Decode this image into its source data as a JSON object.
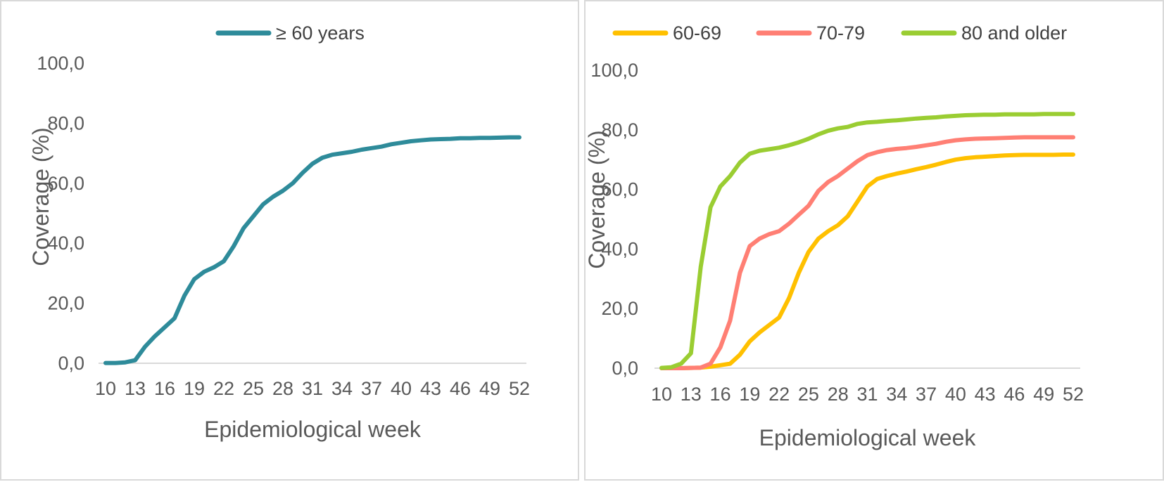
{
  "chart_data": [
    {
      "type": "line",
      "title": "",
      "xlabel": "Epidemiological week",
      "ylabel": "Coverage (%)",
      "ylim": [
        0,
        100
      ],
      "y_ticks": [
        "0,0",
        "20,0",
        "40,0",
        "60,0",
        "80,0",
        "100,0"
      ],
      "x_ticks": [
        "10",
        "13",
        "16",
        "19",
        "22",
        "25",
        "28",
        "31",
        "34",
        "37",
        "40",
        "43",
        "46",
        "49",
        "52"
      ],
      "xlim": [
        10,
        52
      ],
      "grid": false,
      "legend_position": "top",
      "series": [
        {
          "name": "≥ 60 years",
          "color": "#2E8B9A",
          "x": [
            10,
            11,
            12,
            13,
            14,
            15,
            16,
            17,
            18,
            19,
            20,
            21,
            22,
            23,
            24,
            25,
            26,
            27,
            28,
            29,
            30,
            31,
            32,
            33,
            34,
            35,
            36,
            37,
            38,
            39,
            40,
            41,
            42,
            43,
            44,
            45,
            46,
            47,
            48,
            49,
            50,
            51,
            52
          ],
          "values": [
            0.1,
            0.1,
            0.3,
            1.0,
            5.5,
            9.0,
            12.0,
            15.0,
            22.5,
            28.0,
            30.5,
            32.0,
            34.0,
            39.0,
            45.0,
            49.0,
            53.0,
            55.5,
            57.5,
            60.0,
            63.5,
            66.5,
            68.5,
            69.5,
            70.0,
            70.5,
            71.2,
            71.7,
            72.2,
            73.0,
            73.5,
            74.0,
            74.3,
            74.6,
            74.7,
            74.8,
            75.0,
            75.0,
            75.1,
            75.1,
            75.2,
            75.3,
            75.3
          ]
        }
      ]
    },
    {
      "type": "line",
      "title": "",
      "xlabel": "Epidemiological week",
      "ylabel": "Coverage (%)",
      "ylim": [
        0,
        100
      ],
      "y_ticks": [
        "0,0",
        "20,0",
        "40,0",
        "60,0",
        "80,0",
        "100,0"
      ],
      "x_ticks": [
        "10",
        "13",
        "16",
        "19",
        "22",
        "25",
        "28",
        "31",
        "34",
        "37",
        "40",
        "43",
        "46",
        "49",
        "52"
      ],
      "xlim": [
        10,
        52
      ],
      "grid": false,
      "legend_position": "top",
      "series": [
        {
          "name": "60-69",
          "color": "#FFC000",
          "x": [
            10,
            11,
            12,
            13,
            14,
            15,
            16,
            17,
            18,
            19,
            20,
            21,
            22,
            23,
            24,
            25,
            26,
            27,
            28,
            29,
            30,
            31,
            32,
            33,
            34,
            35,
            36,
            37,
            38,
            39,
            40,
            41,
            42,
            43,
            44,
            45,
            46,
            47,
            48,
            49,
            50,
            51,
            52
          ],
          "values": [
            0.0,
            0.0,
            0.0,
            0.1,
            0.2,
            0.5,
            1.0,
            1.5,
            4.5,
            9.0,
            12.0,
            14.5,
            17.0,
            23.5,
            32.0,
            39.0,
            43.5,
            46.0,
            48.0,
            51.0,
            56.0,
            61.0,
            63.5,
            64.5,
            65.3,
            66.0,
            66.8,
            67.5,
            68.3,
            69.2,
            70.0,
            70.5,
            70.8,
            71.0,
            71.2,
            71.4,
            71.5,
            71.6,
            71.6,
            71.6,
            71.6,
            71.7,
            71.7
          ]
        },
        {
          "name": "70-79",
          "color": "#FF7F74",
          "x": [
            10,
            11,
            12,
            13,
            14,
            15,
            16,
            17,
            18,
            19,
            20,
            21,
            22,
            23,
            24,
            25,
            26,
            27,
            28,
            29,
            30,
            31,
            32,
            33,
            34,
            35,
            36,
            37,
            38,
            39,
            40,
            41,
            42,
            43,
            44,
            45,
            46,
            47,
            48,
            49,
            50,
            51,
            52
          ],
          "values": [
            0.0,
            0.0,
            0.0,
            0.1,
            0.2,
            1.5,
            7.0,
            16.0,
            32.0,
            41.0,
            43.5,
            45.0,
            46.0,
            48.5,
            51.5,
            54.5,
            59.5,
            62.5,
            64.5,
            67.0,
            69.5,
            71.5,
            72.5,
            73.2,
            73.6,
            73.9,
            74.3,
            74.8,
            75.3,
            76.0,
            76.5,
            76.8,
            77.0,
            77.1,
            77.2,
            77.3,
            77.4,
            77.5,
            77.5,
            77.5,
            77.5,
            77.5,
            77.5
          ]
        },
        {
          "name": "80 and older",
          "color": "#9ACD32",
          "x": [
            10,
            11,
            12,
            13,
            14,
            15,
            16,
            17,
            18,
            19,
            20,
            21,
            22,
            23,
            24,
            25,
            26,
            27,
            28,
            29,
            30,
            31,
            32,
            33,
            34,
            35,
            36,
            37,
            38,
            39,
            40,
            41,
            42,
            43,
            44,
            45,
            46,
            47,
            48,
            49,
            50,
            51,
            52
          ],
          "values": [
            0.1,
            0.3,
            1.5,
            5.0,
            34.0,
            54.0,
            61.0,
            64.5,
            69.0,
            72.0,
            73.0,
            73.5,
            74.0,
            74.8,
            75.8,
            77.0,
            78.5,
            79.7,
            80.5,
            81.0,
            82.0,
            82.5,
            82.7,
            83.0,
            83.2,
            83.5,
            83.8,
            84.0,
            84.2,
            84.5,
            84.7,
            84.9,
            85.0,
            85.1,
            85.1,
            85.2,
            85.2,
            85.2,
            85.2,
            85.3,
            85.3,
            85.3,
            85.3
          ]
        }
      ]
    }
  ]
}
